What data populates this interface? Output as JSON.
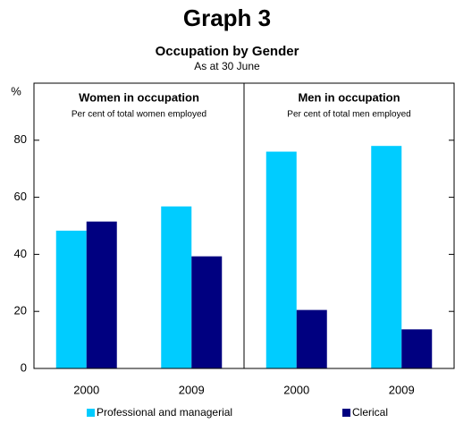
{
  "chart_data": {
    "type": "bar",
    "title": "Graph 3",
    "subtitle": "Occupation by Gender",
    "note": "As at 30 June",
    "y_label": "%",
    "panels": [
      {
        "title": "Women in occupation",
        "subtitle": "Per cent of total women employed"
      },
      {
        "title": "Men in occupation",
        "subtitle": "Per cent of total men employed"
      }
    ],
    "categories": [
      "2000",
      "2009",
      "2000",
      "2009"
    ],
    "series": [
      {
        "name": "Professional and managerial",
        "color": "#00ccff",
        "values": [
          48.3,
          56.8,
          76,
          78
        ]
      },
      {
        "name": "Clerical",
        "color": "#000080",
        "values": [
          51.5,
          39.3,
          20.5,
          13.7
        ]
      }
    ],
    "ylim": [
      0,
      100
    ],
    "yticks": [
      0,
      20,
      40,
      60,
      80
    ]
  }
}
